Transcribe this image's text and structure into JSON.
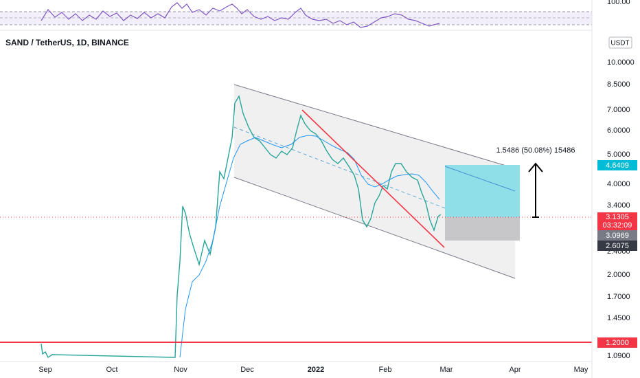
{
  "header": {
    "symbol": "SAND / TetherUS, 1D, BINANCE"
  },
  "rsi_axis": {
    "label": "100.00"
  },
  "price_axis": {
    "currency": "USDT",
    "labels": [
      "10.0000",
      "8.5000",
      "7.0000",
      "6.0000",
      "5.0000",
      "4.0000",
      "3.4000",
      "2.4000",
      "2.0000",
      "1.7000",
      "1.4500",
      "1.0900"
    ]
  },
  "price_tags": [
    {
      "label": "4.6409"
    },
    {
      "label": "3.1305",
      "countdown": "03:32:09"
    },
    {
      "label": "3.0969"
    },
    {
      "label": "2.6075"
    },
    {
      "label": "1.2000"
    }
  ],
  "time_axis": {
    "labels": [
      "Sep",
      "Oct",
      "Nov",
      "Dec",
      "2022",
      "Feb",
      "Mar",
      "Apr",
      "May"
    ]
  },
  "annotation": "1.5486 (50.08%) 15486"
}
